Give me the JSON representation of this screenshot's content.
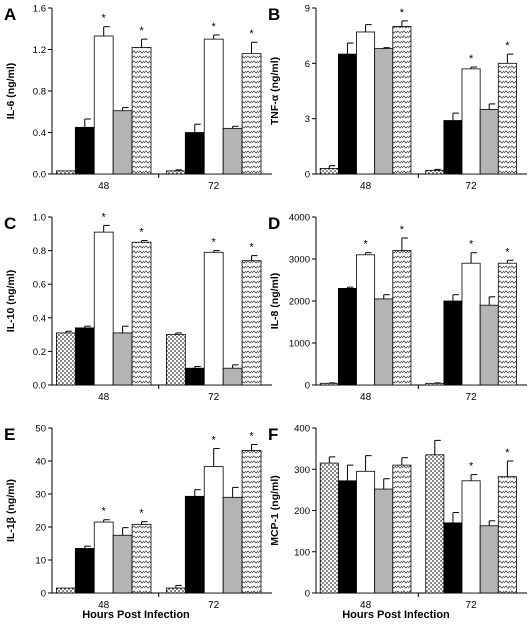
{
  "figure": {
    "xlabel": "Hours Post Infection"
  },
  "colors": {
    "dotted": "#ffffff",
    "black": "#000000",
    "white": "#ffffff",
    "gray": "#b4b4b4",
    "hatched": "#ffffff",
    "axis": "#000000"
  },
  "chart_data": [
    {
      "panel": "A",
      "type": "bar",
      "ylabel": "IL-6 (ng/ml)",
      "ylim": [
        0,
        1.6
      ],
      "yticks": [
        "0.0",
        "0.4",
        "0.8",
        "1.2",
        "1.6"
      ],
      "tick_values": [
        0,
        0.4,
        0.8,
        1.2,
        1.6
      ],
      "categories": [
        "48",
        "72"
      ],
      "series": [
        {
          "pattern": "dotted",
          "values": [
            0.03,
            0.03
          ],
          "errors": [
            0,
            0.01
          ],
          "star": [
            false,
            false
          ]
        },
        {
          "pattern": "black",
          "values": [
            0.45,
            0.4
          ],
          "errors": [
            0.08,
            0.08
          ],
          "star": [
            false,
            false
          ]
        },
        {
          "pattern": "white",
          "values": [
            1.33,
            1.3
          ],
          "errors": [
            0.09,
            0.04
          ],
          "star": [
            true,
            true
          ]
        },
        {
          "pattern": "gray",
          "values": [
            0.61,
            0.44
          ],
          "errors": [
            0.03,
            0.02
          ],
          "star": [
            false,
            false
          ]
        },
        {
          "pattern": "hatched",
          "values": [
            1.22,
            1.16
          ],
          "errors": [
            0.08,
            0.11
          ],
          "star": [
            true,
            true
          ]
        }
      ]
    },
    {
      "panel": "B",
      "type": "bar",
      "ylabel": "TNF-α (ng/ml)",
      "ylim": [
        0,
        9
      ],
      "yticks": [
        "0",
        "3",
        "6",
        "9"
      ],
      "tick_values": [
        0,
        3,
        6,
        9
      ],
      "categories": [
        "48",
        "72"
      ],
      "series": [
        {
          "pattern": "dotted",
          "values": [
            0.3,
            0.2
          ],
          "errors": [
            0.15,
            0.05
          ],
          "star": [
            false,
            false
          ]
        },
        {
          "pattern": "black",
          "values": [
            6.5,
            2.9
          ],
          "errors": [
            0.6,
            0.4
          ],
          "star": [
            false,
            false
          ]
        },
        {
          "pattern": "white",
          "values": [
            7.7,
            5.7
          ],
          "errors": [
            0.4,
            0.1
          ],
          "star": [
            false,
            true
          ]
        },
        {
          "pattern": "gray",
          "values": [
            6.8,
            3.5
          ],
          "errors": [
            0.05,
            0.3
          ],
          "star": [
            false,
            false
          ]
        },
        {
          "pattern": "hatched",
          "values": [
            8.0,
            6.0
          ],
          "errors": [
            0.3,
            0.5
          ],
          "star": [
            true,
            true
          ]
        }
      ]
    },
    {
      "panel": "C",
      "type": "bar",
      "ylabel": "IL-10 (ng/ml)",
      "ylim": [
        0,
        1.0
      ],
      "yticks": [
        "0.0",
        "0.2",
        "0.4",
        "0.6",
        "0.8",
        "1.0"
      ],
      "tick_values": [
        0,
        0.2,
        0.4,
        0.6,
        0.8,
        1.0
      ],
      "categories": [
        "48",
        "72"
      ],
      "series": [
        {
          "pattern": "dotted",
          "values": [
            0.31,
            0.3
          ],
          "errors": [
            0.01,
            0.01
          ],
          "star": [
            false,
            false
          ]
        },
        {
          "pattern": "black",
          "values": [
            0.34,
            0.1
          ],
          "errors": [
            0.01,
            0.01
          ],
          "star": [
            false,
            false
          ]
        },
        {
          "pattern": "white",
          "values": [
            0.91,
            0.79
          ],
          "errors": [
            0.04,
            0.01
          ],
          "star": [
            true,
            true
          ]
        },
        {
          "pattern": "gray",
          "values": [
            0.31,
            0.1
          ],
          "errors": [
            0.04,
            0.02
          ],
          "star": [
            false,
            false
          ]
        },
        {
          "pattern": "hatched",
          "values": [
            0.85,
            0.74
          ],
          "errors": [
            0.01,
            0.03
          ],
          "star": [
            true,
            true
          ]
        }
      ]
    },
    {
      "panel": "D",
      "type": "bar",
      "ylabel": "IL-8 (ng/ml)",
      "ylim": [
        0,
        4000
      ],
      "yticks": [
        "0",
        "1000",
        "2000",
        "3000",
        "4000"
      ],
      "tick_values": [
        0,
        1000,
        2000,
        3000,
        4000
      ],
      "categories": [
        "48",
        "72"
      ],
      "series": [
        {
          "pattern": "dotted",
          "values": [
            40,
            40
          ],
          "errors": [
            10,
            10
          ],
          "star": [
            false,
            false
          ]
        },
        {
          "pattern": "black",
          "values": [
            2300,
            2000
          ],
          "errors": [
            30,
            150
          ],
          "star": [
            false,
            false
          ]
        },
        {
          "pattern": "white",
          "values": [
            3100,
            2900
          ],
          "errors": [
            50,
            250
          ],
          "star": [
            true,
            true
          ]
        },
        {
          "pattern": "gray",
          "values": [
            2050,
            1900
          ],
          "errors": [
            100,
            200
          ],
          "star": [
            false,
            false
          ]
        },
        {
          "pattern": "hatched",
          "values": [
            3200,
            2900
          ],
          "errors": [
            300,
            70
          ],
          "star": [
            true,
            true
          ]
        }
      ]
    },
    {
      "panel": "E",
      "type": "bar",
      "ylabel": "IL-1β (ng/ml)",
      "ylim": [
        0,
        50
      ],
      "yticks": [
        "0",
        "10",
        "20",
        "30",
        "40",
        "50"
      ],
      "tick_values": [
        0,
        10,
        20,
        30,
        40,
        50
      ],
      "categories": [
        "48",
        "72"
      ],
      "series": [
        {
          "pattern": "dotted",
          "values": [
            1.5,
            1.5
          ],
          "errors": [
            0,
            0.8
          ],
          "star": [
            false,
            false
          ]
        },
        {
          "pattern": "black",
          "values": [
            13.5,
            29.3
          ],
          "errors": [
            0.7,
            2.0
          ],
          "star": [
            false,
            false
          ]
        },
        {
          "pattern": "white",
          "values": [
            21.5,
            38.3
          ],
          "errors": [
            0.7,
            5.5
          ],
          "star": [
            true,
            true
          ]
        },
        {
          "pattern": "gray",
          "values": [
            17.5,
            29.0
          ],
          "errors": [
            2.3,
            3.0
          ],
          "star": [
            false,
            false
          ]
        },
        {
          "pattern": "hatched",
          "values": [
            20.8,
            43.2
          ],
          "errors": [
            0.8,
            1.8
          ],
          "star": [
            true,
            true
          ]
        }
      ]
    },
    {
      "panel": "F",
      "type": "bar",
      "ylabel": "MCP-1 (ng/ml)",
      "ylim": [
        0,
        400
      ],
      "yticks": [
        "0",
        "100",
        "200",
        "300",
        "400"
      ],
      "tick_values": [
        0,
        100,
        200,
        300,
        400
      ],
      "categories": [
        "48",
        "72"
      ],
      "series": [
        {
          "pattern": "dotted",
          "values": [
            315,
            335
          ],
          "errors": [
            15,
            35
          ],
          "star": [
            false,
            false
          ]
        },
        {
          "pattern": "black",
          "values": [
            272,
            170
          ],
          "errors": [
            38,
            25
          ],
          "star": [
            false,
            false
          ]
        },
        {
          "pattern": "white",
          "values": [
            295,
            272
          ],
          "errors": [
            38,
            15
          ],
          "star": [
            false,
            true
          ]
        },
        {
          "pattern": "gray",
          "values": [
            252,
            163
          ],
          "errors": [
            25,
            12
          ],
          "star": [
            false,
            false
          ]
        },
        {
          "pattern": "hatched",
          "values": [
            310,
            282
          ],
          "errors": [
            18,
            38
          ],
          "star": [
            false,
            true
          ]
        }
      ]
    }
  ]
}
